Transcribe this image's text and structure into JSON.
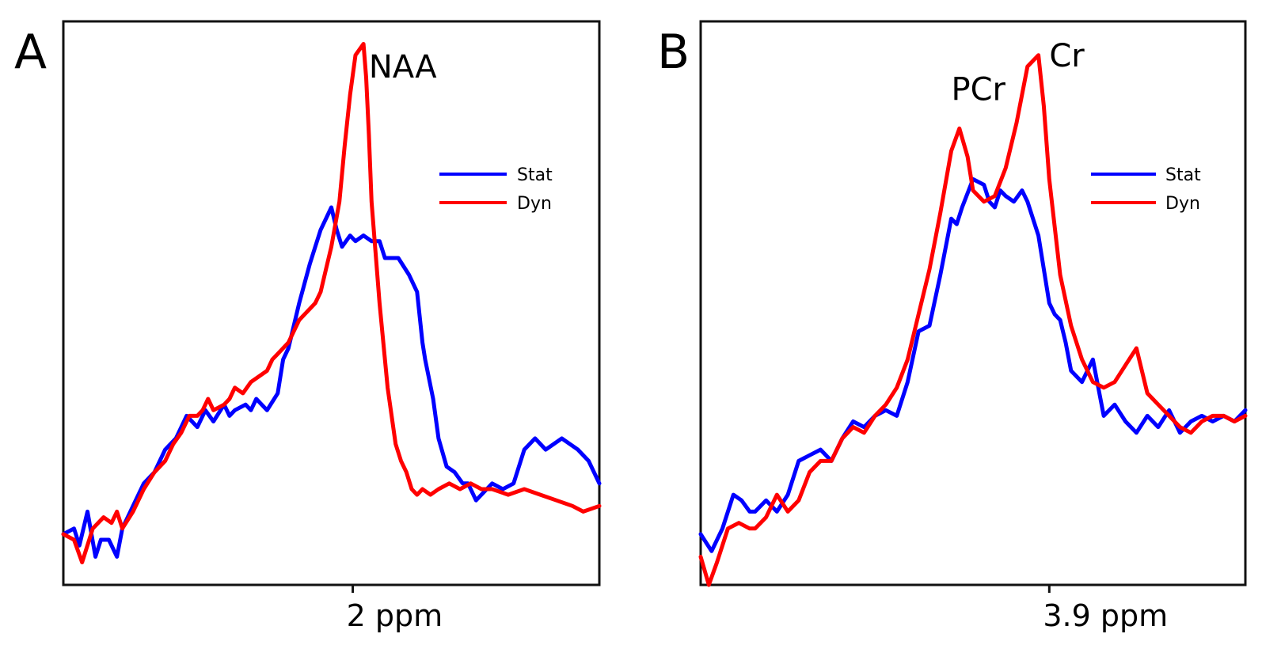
{
  "chart_data": [
    {
      "type": "line",
      "panel_label": "A",
      "xlabel": "",
      "ylabel": "",
      "x_tick_label": "2 ppm",
      "x_tick_pos": 0.54,
      "xlim": [
        0,
        1
      ],
      "ylim": [
        0,
        1
      ],
      "grid": false,
      "legend_position": "right",
      "peak_labels": [
        {
          "text": "NAA",
          "x": 0.57,
          "y": 0.9
        }
      ],
      "series": [
        {
          "name": "Stat",
          "color": "#0000ff",
          "x": [
            0,
            0.02,
            0.03,
            0.045,
            0.06,
            0.07,
            0.085,
            0.1,
            0.11,
            0.13,
            0.15,
            0.17,
            0.19,
            0.21,
            0.23,
            0.25,
            0.265,
            0.28,
            0.3,
            0.31,
            0.32,
            0.34,
            0.35,
            0.36,
            0.38,
            0.4,
            0.41,
            0.42,
            0.44,
            0.46,
            0.47,
            0.48,
            0.5,
            0.51,
            0.52,
            0.535,
            0.545,
            0.56,
            0.575,
            0.59,
            0.6,
            0.62,
            0.625,
            0.645,
            0.66,
            0.67,
            0.675,
            0.69,
            0.7,
            0.715,
            0.73,
            0.745,
            0.755,
            0.77,
            0.8,
            0.82,
            0.84,
            0.86,
            0.88,
            0.9,
            0.93,
            0.96,
            0.98,
            1.0
          ],
          "y": [
            0.09,
            0.1,
            0.07,
            0.13,
            0.05,
            0.08,
            0.08,
            0.05,
            0.1,
            0.14,
            0.18,
            0.2,
            0.24,
            0.26,
            0.3,
            0.28,
            0.31,
            0.29,
            0.32,
            0.3,
            0.31,
            0.32,
            0.31,
            0.33,
            0.31,
            0.34,
            0.4,
            0.42,
            0.5,
            0.57,
            0.6,
            0.63,
            0.67,
            0.63,
            0.6,
            0.62,
            0.61,
            0.62,
            0.61,
            0.61,
            0.58,
            0.58,
            0.58,
            0.55,
            0.52,
            0.43,
            0.4,
            0.33,
            0.26,
            0.21,
            0.2,
            0.18,
            0.18,
            0.15,
            0.18,
            0.17,
            0.18,
            0.24,
            0.26,
            0.24,
            0.26,
            0.24,
            0.22,
            0.18
          ]
        },
        {
          "name": "Dyn",
          "color": "#ff0000",
          "x": [
            0,
            0.02,
            0.035,
            0.055,
            0.075,
            0.09,
            0.1,
            0.11,
            0.13,
            0.15,
            0.17,
            0.18,
            0.19,
            0.205,
            0.22,
            0.235,
            0.25,
            0.26,
            0.27,
            0.28,
            0.3,
            0.31,
            0.32,
            0.335,
            0.35,
            0.365,
            0.38,
            0.39,
            0.4,
            0.42,
            0.43,
            0.44,
            0.45,
            0.47,
            0.48,
            0.49,
            0.5,
            0.515,
            0.525,
            0.535,
            0.545,
            0.56,
            0.565,
            0.57,
            0.575,
            0.59,
            0.605,
            0.62,
            0.63,
            0.64,
            0.65,
            0.66,
            0.67,
            0.685,
            0.7,
            0.72,
            0.74,
            0.76,
            0.78,
            0.8,
            0.83,
            0.86,
            0.89,
            0.92,
            0.95,
            0.97,
            1.0
          ],
          "y": [
            0.09,
            0.08,
            0.04,
            0.1,
            0.12,
            0.11,
            0.13,
            0.1,
            0.13,
            0.17,
            0.2,
            0.21,
            0.22,
            0.25,
            0.27,
            0.3,
            0.3,
            0.31,
            0.33,
            0.31,
            0.32,
            0.33,
            0.35,
            0.34,
            0.36,
            0.37,
            0.38,
            0.4,
            0.41,
            0.43,
            0.45,
            0.47,
            0.48,
            0.5,
            0.52,
            0.56,
            0.6,
            0.68,
            0.78,
            0.87,
            0.94,
            0.96,
            0.9,
            0.8,
            0.68,
            0.5,
            0.35,
            0.25,
            0.22,
            0.2,
            0.17,
            0.16,
            0.17,
            0.16,
            0.17,
            0.18,
            0.17,
            0.18,
            0.17,
            0.17,
            0.16,
            0.17,
            0.16,
            0.15,
            0.14,
            0.13,
            0.14
          ]
        }
      ]
    },
    {
      "type": "line",
      "panel_label": "B",
      "xlabel": "",
      "ylabel": "",
      "x_tick_label": "3.9 ppm",
      "x_tick_pos": 0.64,
      "xlim": [
        0,
        1
      ],
      "ylim": [
        0,
        1
      ],
      "grid": false,
      "legend_position": "right",
      "peak_labels": [
        {
          "text": "PCr",
          "x": 0.46,
          "y": 0.86
        },
        {
          "text": "Cr",
          "x": 0.64,
          "y": 0.92
        }
      ],
      "series": [
        {
          "name": "Stat",
          "color": "#0000ff",
          "x": [
            0,
            0.02,
            0.04,
            0.06,
            0.075,
            0.09,
            0.1,
            0.12,
            0.14,
            0.16,
            0.18,
            0.2,
            0.22,
            0.24,
            0.26,
            0.28,
            0.3,
            0.32,
            0.34,
            0.36,
            0.38,
            0.4,
            0.42,
            0.44,
            0.46,
            0.47,
            0.48,
            0.5,
            0.52,
            0.53,
            0.54,
            0.55,
            0.56,
            0.575,
            0.59,
            0.6,
            0.62,
            0.64,
            0.65,
            0.66,
            0.67,
            0.68,
            0.7,
            0.72,
            0.74,
            0.76,
            0.78,
            0.8,
            0.82,
            0.84,
            0.86,
            0.88,
            0.9,
            0.92,
            0.94,
            0.96,
            0.98,
            1.0
          ],
          "y": [
            0.09,
            0.06,
            0.1,
            0.16,
            0.15,
            0.13,
            0.13,
            0.15,
            0.13,
            0.16,
            0.22,
            0.23,
            0.24,
            0.22,
            0.26,
            0.29,
            0.28,
            0.3,
            0.31,
            0.3,
            0.36,
            0.45,
            0.46,
            0.55,
            0.65,
            0.64,
            0.67,
            0.72,
            0.71,
            0.68,
            0.67,
            0.7,
            0.69,
            0.68,
            0.7,
            0.68,
            0.62,
            0.5,
            0.48,
            0.47,
            0.43,
            0.38,
            0.36,
            0.4,
            0.3,
            0.32,
            0.29,
            0.27,
            0.3,
            0.28,
            0.31,
            0.27,
            0.29,
            0.3,
            0.29,
            0.3,
            0.29,
            0.31
          ]
        },
        {
          "name": "Dyn",
          "color": "#ff0000",
          "x": [
            0,
            0.015,
            0.03,
            0.05,
            0.07,
            0.09,
            0.1,
            0.12,
            0.14,
            0.16,
            0.18,
            0.2,
            0.22,
            0.24,
            0.26,
            0.28,
            0.3,
            0.32,
            0.34,
            0.36,
            0.38,
            0.4,
            0.42,
            0.44,
            0.46,
            0.475,
            0.49,
            0.5,
            0.52,
            0.54,
            0.56,
            0.58,
            0.6,
            0.62,
            0.63,
            0.64,
            0.66,
            0.68,
            0.7,
            0.72,
            0.74,
            0.76,
            0.78,
            0.8,
            0.82,
            0.84,
            0.86,
            0.88,
            0.9,
            0.92,
            0.94,
            0.96,
            0.98,
            1.0
          ],
          "y": [
            0.05,
            0.0,
            0.04,
            0.1,
            0.11,
            0.1,
            0.1,
            0.12,
            0.16,
            0.13,
            0.15,
            0.2,
            0.22,
            0.22,
            0.26,
            0.28,
            0.27,
            0.3,
            0.32,
            0.35,
            0.4,
            0.48,
            0.56,
            0.66,
            0.77,
            0.81,
            0.76,
            0.7,
            0.68,
            0.69,
            0.74,
            0.82,
            0.92,
            0.94,
            0.85,
            0.72,
            0.55,
            0.46,
            0.4,
            0.36,
            0.35,
            0.36,
            0.39,
            0.42,
            0.34,
            0.32,
            0.3,
            0.28,
            0.27,
            0.29,
            0.3,
            0.3,
            0.29,
            0.3
          ]
        }
      ]
    }
  ]
}
